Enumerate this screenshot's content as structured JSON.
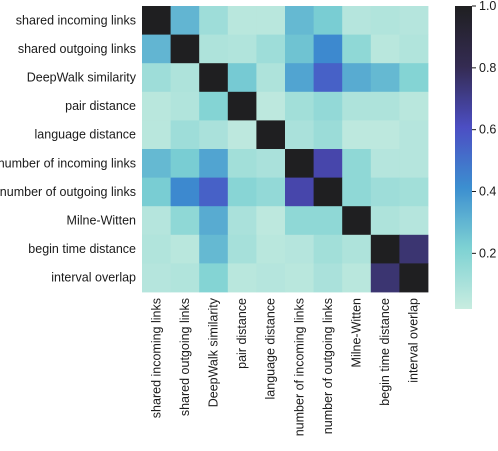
{
  "chart_data": {
    "type": "heatmap",
    "title": "",
    "xlabel": "",
    "ylabel": "",
    "row_labels": [
      "shared incoming links",
      "shared outgoing links",
      "DeepWalk similarity",
      "pair distance",
      "language distance",
      "number of incoming links",
      "number of outgoing links",
      "Milne-Witten",
      "begin time distance",
      "interval overlap"
    ],
    "col_labels": [
      "shared incoming links",
      "shared outgoing links",
      "DeepWalk similarity",
      "pair distance",
      "language distance",
      "number of incoming links",
      "number of outgoing links",
      "Milne-Witten",
      "begin time distance",
      "interval overlap"
    ],
    "values": [
      [
        1.0,
        0.3,
        0.13,
        0.06,
        0.06,
        0.29,
        0.23,
        0.07,
        0.08,
        0.07
      ],
      [
        0.3,
        1.0,
        0.09,
        0.08,
        0.13,
        0.26,
        0.43,
        0.17,
        0.06,
        0.08
      ],
      [
        0.13,
        0.09,
        1.0,
        0.24,
        0.09,
        0.35,
        0.55,
        0.33,
        0.29,
        0.2
      ],
      [
        0.06,
        0.08,
        0.2,
        1.0,
        0.05,
        0.12,
        0.16,
        0.09,
        0.09,
        0.06
      ],
      [
        0.06,
        0.13,
        0.1,
        0.05,
        1.0,
        0.1,
        0.14,
        0.05,
        0.05,
        0.07
      ],
      [
        0.29,
        0.23,
        0.35,
        0.12,
        0.1,
        1.0,
        0.65,
        0.17,
        0.07,
        0.07
      ],
      [
        0.23,
        0.43,
        0.55,
        0.19,
        0.16,
        0.65,
        1.0,
        0.17,
        0.13,
        0.12
      ],
      [
        0.07,
        0.17,
        0.33,
        0.1,
        0.05,
        0.17,
        0.17,
        1.0,
        0.09,
        0.07
      ],
      [
        0.08,
        0.06,
        0.29,
        0.11,
        0.06,
        0.07,
        0.12,
        0.09,
        1.0,
        0.75
      ],
      [
        0.07,
        0.08,
        0.2,
        0.06,
        0.07,
        0.06,
        0.1,
        0.06,
        0.75,
        1.0
      ]
    ],
    "vmin": 0.02,
    "vmax": 1.0,
    "colorbar": {
      "ticks": [
        0.2,
        0.4,
        0.6,
        0.8,
        1.0
      ],
      "tick_labels": [
        "0.2",
        "0.4",
        "0.6",
        "0.8",
        "1.0"
      ]
    },
    "colormap": "icefire-cyan-to-black",
    "colormap_stops": [
      {
        "v": 0.0,
        "color": "#c8ece0"
      },
      {
        "v": 0.2,
        "color": "#7ed2d3"
      },
      {
        "v": 0.4,
        "color": "#3c8fd0"
      },
      {
        "v": 0.6,
        "color": "#4c4ec3"
      },
      {
        "v": 0.8,
        "color": "#342b52"
      },
      {
        "v": 1.0,
        "color": "#1f1f21"
      }
    ],
    "grid": false
  }
}
